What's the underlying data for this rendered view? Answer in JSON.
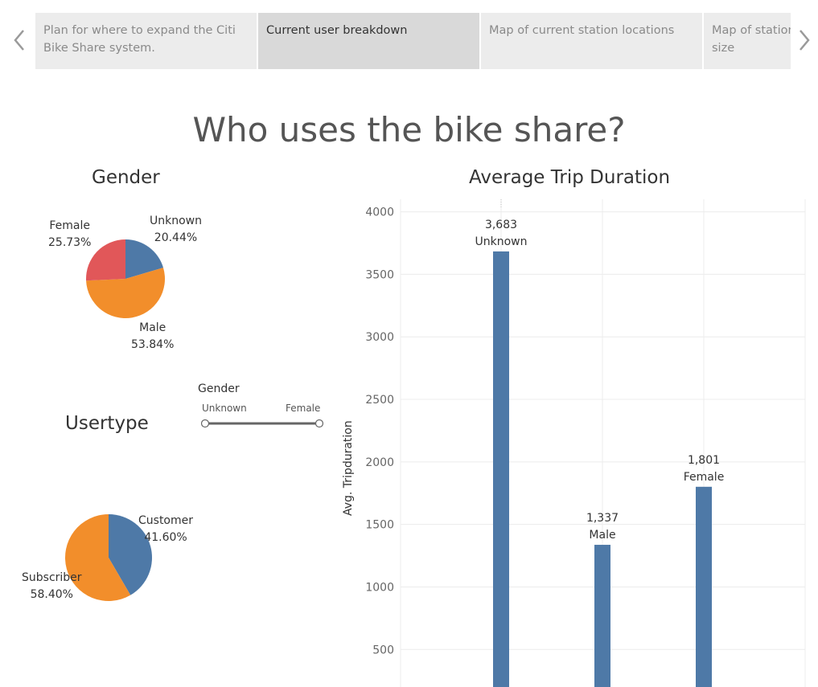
{
  "story": {
    "tabs": [
      {
        "label": "Plan for where to expand the Citi Bike Share system.",
        "active": false
      },
      {
        "label": "Current user breakdown",
        "active": true
      },
      {
        "label": "Map of current station locations",
        "active": false
      },
      {
        "label": "Map of stations and household size",
        "active": false
      }
    ],
    "prev_icon": "chevron-left-icon",
    "next_icon": "chevron-right-icon"
  },
  "dashboard_title": "Who uses the bike share?",
  "gender_pie": {
    "title": "Gender",
    "slices": [
      {
        "name": "Unknown",
        "pct": "20.44%",
        "value": 20.44,
        "color": "#4e79a7"
      },
      {
        "name": "Male",
        "pct": "53.84%",
        "value": 53.84,
        "color": "#f28e2b"
      },
      {
        "name": "Female",
        "pct": "25.73%",
        "value": 25.73,
        "color": "#e15759"
      }
    ]
  },
  "usertype_pie": {
    "title": "Usertype",
    "slices": [
      {
        "name": "Customer",
        "pct": "41.60%",
        "value": 41.6,
        "color": "#4e79a7"
      },
      {
        "name": "Subscriber",
        "pct": "58.40%",
        "value": 58.4,
        "color": "#f28e2b"
      }
    ]
  },
  "gender_filter": {
    "title": "Gender",
    "min_label": "Unknown",
    "max_label": "Female"
  },
  "chart_data": {
    "type": "bar",
    "title": "Average Trip Duration",
    "xlabel": "",
    "ylabel": "Avg. Tripduration",
    "categories": [
      "Unknown",
      "Male",
      "Female"
    ],
    "values": [
      3683,
      1337,
      1801
    ],
    "value_labels": [
      "3,683",
      "1,337",
      "1,801"
    ],
    "yticks": [
      "500",
      "1000",
      "1500",
      "2000",
      "2500",
      "3000",
      "3500",
      "4000"
    ],
    "ylim": [
      200,
      4100
    ],
    "bar_color": "#4e79a7",
    "grid": true
  }
}
